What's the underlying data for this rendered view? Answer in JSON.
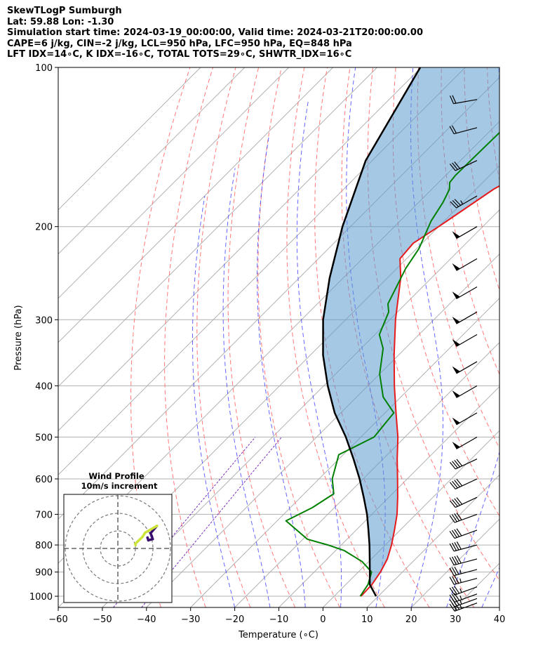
{
  "header": {
    "line1": "SkewTLogP Sumburgh",
    "line2": "Lat: 59.88   Lon: -1.30",
    "line3": "Simulation start time: 2024-03-19_00:00:00, Valid time: 2024-03-21T20:00:00.00",
    "line4": "CAPE=6 j/kg, CIN=-2 j/kg, LCL=950 hPa, LFC=950 hPa, EQ=848 hPa",
    "line5": "LFT IDX=14∘C, K IDX=-16∘C, TOTAL TOTS=29∘C, SHWTR_IDX=16∘C"
  },
  "chart_data": {
    "type": "skew-t log-p",
    "xlabel": "Temperature (∘C)",
    "ylabel": "Pressure (hPa)",
    "xlim": [
      -60,
      40
    ],
    "ylim": [
      1050,
      100
    ],
    "x_ticks": [
      -60,
      -50,
      -40,
      -30,
      -20,
      -10,
      0,
      10,
      20,
      30,
      40
    ],
    "y_ticks": [
      1000,
      900,
      800,
      700,
      600,
      500,
      400,
      300,
      200,
      100
    ],
    "grid": true,
    "colors": {
      "temperature": "#e41a1c",
      "dewpoint": "#008000",
      "parcel": "#000000",
      "shading": "#5b9bd0",
      "dry_adiabats": "#ff6a6a",
      "moist_adiabats": "#3333ff",
      "mixing_ratio": "#7b2fbe",
      "isotherms": "#999999"
    },
    "series": [
      {
        "key": "temperature",
        "pressure": [
          1000,
          950,
          900,
          850,
          800,
          750,
          700,
          650,
          600,
          550,
          500,
          450,
          400,
          350,
          300,
          250,
          230,
          215,
          200,
          170,
          160,
          150,
          140,
          120,
          110,
          100
        ],
        "values": [
          6.1,
          5.9,
          5.0,
          3.6,
          1.4,
          -1.3,
          -4.3,
          -8.0,
          -12.2,
          -16.8,
          -21.6,
          -27.5,
          -34.0,
          -41.0,
          -48.7,
          -57.0,
          -61.5,
          -62.0,
          -60.0,
          -56.0,
          -53.5,
          -51.5,
          -50.0,
          -46.0,
          -42.5,
          -39.0
        ]
      },
      {
        "key": "dewpoint",
        "pressure": [
          1000,
          950,
          900,
          860,
          820,
          800,
          780,
          720,
          680,
          640,
          600,
          540,
          500,
          450,
          420,
          380,
          340,
          320,
          290,
          280,
          240,
          220,
          195,
          180,
          170,
          165,
          160,
          100
        ],
        "values": [
          5.9,
          5.0,
          3.0,
          -1.5,
          -8.0,
          -13.0,
          -19.0,
          -28.0,
          -25.0,
          -23.3,
          -27.0,
          -31.0,
          -27.0,
          -28.0,
          -34.0,
          -40.0,
          -45.0,
          -49.0,
          -52.0,
          -54.0,
          -58.0,
          -59.5,
          -63.0,
          -64.5,
          -66.0,
          -67.5,
          -67.8,
          -67.0
        ]
      },
      {
        "key": "parcel",
        "pressure": [
          1000,
          950,
          900,
          850,
          800,
          750,
          700,
          650,
          600,
          550,
          500,
          450,
          400,
          350,
          300,
          250,
          200,
          150,
          100
        ],
        "values": [
          9.5,
          5.4,
          2.6,
          -0.4,
          -3.6,
          -7.2,
          -11.1,
          -15.7,
          -20.8,
          -26.7,
          -33.4,
          -41.4,
          -49.1,
          -57.1,
          -65.1,
          -73.1,
          -81.8,
          -91.5,
          -100.2
        ]
      }
    ],
    "shading_between": [
      "temperature",
      "parcel"
    ],
    "wind_barbs": {
      "pressure": [
        1030,
        1010,
        990,
        960,
        925,
        890,
        850,
        800,
        750,
        700,
        650,
        600,
        550,
        500,
        450,
        400,
        360,
        320,
        290,
        260,
        230,
        200,
        175,
        150,
        130,
        115
      ],
      "speed_kt": [
        35,
        35,
        35,
        35,
        35,
        35,
        40,
        40,
        40,
        40,
        40,
        40,
        40,
        50,
        50,
        50,
        50,
        50,
        50,
        50,
        50,
        50,
        35,
        30,
        20,
        20
      ],
      "direction_deg": [
        250,
        250,
        250,
        250,
        255,
        255,
        255,
        255,
        250,
        250,
        245,
        245,
        245,
        240,
        240,
        240,
        240,
        240,
        240,
        240,
        240,
        240,
        240,
        245,
        255,
        260
      ]
    },
    "inset": {
      "title": "Wind Profile",
      "subtitle": "10m/s increment",
      "rings": 3,
      "colors": [
        "#3b0f70",
        "#5a1a80",
        "#cde33a",
        "#d0e11c"
      ]
    }
  }
}
